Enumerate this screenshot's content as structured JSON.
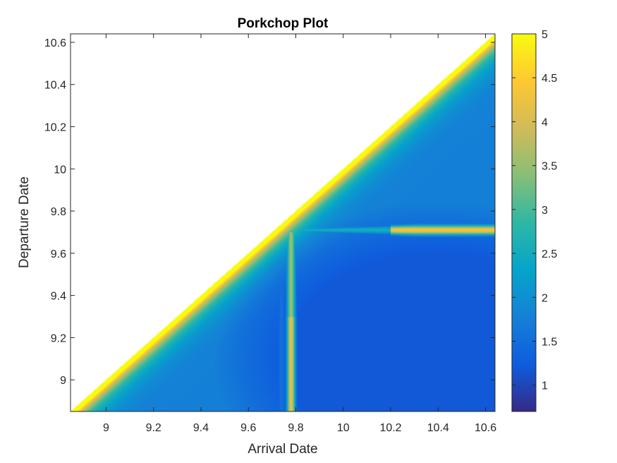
{
  "chart_data": {
    "type": "heatmap",
    "title": "Porkchop Plot",
    "xlabel": "Arrival Date",
    "ylabel": "Departure Date",
    "xlim": [
      8.85,
      10.64
    ],
    "ylim": [
      8.85,
      10.64
    ],
    "x_ticks": [
      "9",
      "9.2",
      "9.4",
      "9.6",
      "9.8",
      "10",
      "10.2",
      "10.4",
      "10.6"
    ],
    "y_ticks": [
      "9",
      "9.2",
      "9.4",
      "9.6",
      "9.8",
      "10",
      "10.2",
      "10.4",
      "10.6"
    ],
    "x_tick_values": [
      9,
      9.2,
      9.4,
      9.6,
      9.8,
      10,
      10.2,
      10.4,
      10.6
    ],
    "y_tick_values": [
      9,
      9.2,
      9.4,
      9.6,
      9.8,
      10,
      10.2,
      10.4,
      10.6
    ],
    "colorbar": {
      "colormap": "parula",
      "range": [
        0.7,
        5
      ],
      "ticks": [
        "1",
        "1.5",
        "2",
        "2.5",
        "3",
        "3.5",
        "4",
        "4.5",
        "5"
      ],
      "tick_values": [
        1,
        1.5,
        2,
        2.5,
        3,
        3.5,
        4,
        4.5,
        5
      ]
    },
    "features": {
      "region": "upper-left triangle (departure after arrival) is empty",
      "minimum": {
        "x": 10.4,
        "y": 9.1,
        "value": 0.75
      },
      "ridge_horizontal_departure": 9.71,
      "ridge_vertical_arrival": 9.78
    },
    "grid": false,
    "colors": {
      "parula": [
        "#352a87",
        "#0f5cdd",
        "#1481d6",
        "#06a4ca",
        "#2eb7a4",
        "#87bf77",
        "#d1bb59",
        "#fec832",
        "#f9fb0e"
      ],
      "axis": "#262626"
    }
  }
}
